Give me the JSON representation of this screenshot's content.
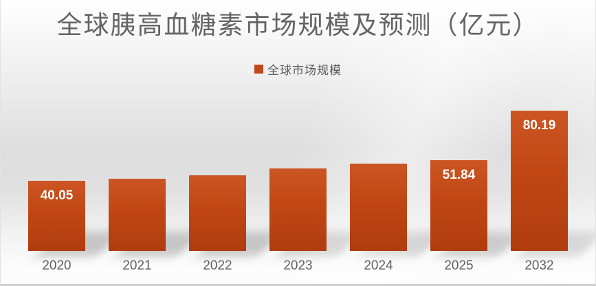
{
  "chart_data": {
    "type": "bar",
    "title": "全球胰高血糖素市场规模及预测（亿元）",
    "categories": [
      "2020",
      "2021",
      "2022",
      "2023",
      "2024",
      "2025",
      "2032"
    ],
    "series": [
      {
        "name": "全球市场规模",
        "values": [
          40.05,
          41.2,
          43.3,
          46.9,
          50.0,
          51.84,
          80.19
        ],
        "labels": [
          "40.05",
          "",
          "",
          "",
          "",
          "51.84",
          "80.19"
        ]
      }
    ],
    "estimated_values": [
      false,
      true,
      true,
      true,
      true,
      false,
      false
    ],
    "value_axis_visible": false,
    "category_axis_visible": true,
    "gridlines": false,
    "legend_position": "top-center",
    "ylim": [
      0,
      120
    ]
  },
  "legend": {
    "items": [
      {
        "label": "全球市场规模",
        "color": "#c1481a"
      }
    ]
  },
  "colors": {
    "bar_top": "#cb5523",
    "bar_mid": "#c04714",
    "bar_bottom": "#b03c0e",
    "title_text": "#646464",
    "axis_text": "#5f5f5f",
    "data_label_text": "#ffffff"
  }
}
